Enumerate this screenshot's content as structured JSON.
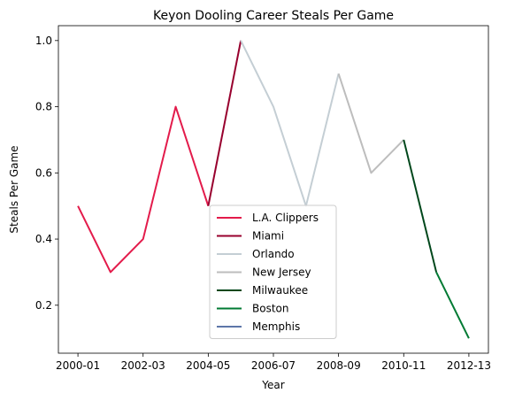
{
  "chart_data": {
    "type": "line",
    "title": "Keyon Dooling Career Steals Per Game",
    "xlabel": "Year",
    "ylabel": "Steals Per Game",
    "categories": [
      "2000-01",
      "2001-02",
      "2002-03",
      "2003-04",
      "2004-05",
      "2005-06",
      "2006-07",
      "2007-08",
      "2008-09",
      "2009-10",
      "2010-11",
      "2011-12",
      "2012-13"
    ],
    "xticks": [
      "2000-01",
      "2002-03",
      "2004-05",
      "2006-07",
      "2008-09",
      "2010-11",
      "2012-13"
    ],
    "yticks": [
      "0.2",
      "0.4",
      "0.6",
      "0.8",
      "1.0"
    ],
    "ylim": [
      0.055,
      1.045
    ],
    "grid": false,
    "legend_position": "lower-center",
    "series": [
      {
        "name": "L.A. Clippers",
        "color": "#E31B4B",
        "x": [
          "2000-01",
          "2001-02",
          "2002-03",
          "2003-04",
          "2004-05"
        ],
        "values": [
          0.5,
          0.3,
          0.4,
          0.8,
          0.5
        ]
      },
      {
        "name": "Miami",
        "color": "#98002E",
        "x": [
          "2004-05",
          "2005-06"
        ],
        "values": [
          0.5,
          1.0
        ]
      },
      {
        "name": "Orlando",
        "color": "#C4CED4",
        "x": [
          "2005-06",
          "2006-07",
          "2007-08",
          "2008-09"
        ],
        "values": [
          1.0,
          0.8,
          0.5,
          0.9
        ]
      },
      {
        "name": "New Jersey",
        "color": "#BDBDBD",
        "x": [
          "2008-09",
          "2009-10",
          "2010-11"
        ],
        "values": [
          0.9,
          0.6,
          0.7
        ]
      },
      {
        "name": "Milwaukee",
        "color": "#00471B",
        "x": [
          "2010-11",
          "2011-12"
        ],
        "values": [
          0.7,
          0.3
        ]
      },
      {
        "name": "Boston",
        "color": "#007A33",
        "x": [
          "2011-12",
          "2012-13"
        ],
        "values": [
          0.3,
          0.1
        ]
      },
      {
        "name": "Memphis",
        "color": "#5D76A9",
        "x": [],
        "values": []
      }
    ]
  }
}
